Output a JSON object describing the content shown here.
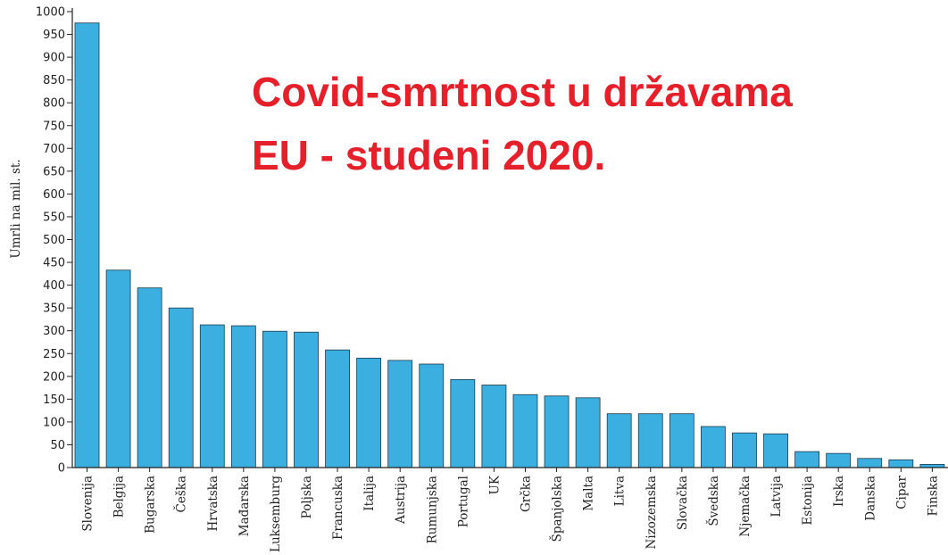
{
  "chart_data": {
    "type": "bar",
    "title_lines": [
      "Covid-smrtnost u državama",
      "EU - studeni 2020."
    ],
    "xlabel": "",
    "ylabel": "Umrli na mil. st.",
    "ylim": [
      0,
      1000
    ],
    "yticks": [
      0,
      50,
      100,
      150,
      200,
      250,
      300,
      350,
      400,
      450,
      500,
      550,
      600,
      650,
      700,
      750,
      800,
      850,
      900,
      950,
      1000
    ],
    "grid": false,
    "legend": "none",
    "categories": [
      "Slovenija",
      "Belgija",
      "Bugarska",
      "Češka",
      "Hrvatska",
      "Mađarska",
      "Luksemburg",
      "Poljska",
      "Francuska",
      "Italija",
      "Austrija",
      "Rumunjska",
      "Portugal",
      "UK",
      "Grčka",
      "Španjolska",
      "Malta",
      "Litva",
      "Nizozemska",
      "Slovačka",
      "Švedska",
      "Njemačka",
      "Latvija",
      "Estonija",
      "Irska",
      "Danska",
      "Cipar",
      "Finska"
    ],
    "values": [
      975,
      433,
      394,
      350,
      313,
      311,
      299,
      297,
      258,
      240,
      235,
      227,
      193,
      181,
      160,
      157,
      153,
      118,
      118,
      118,
      90,
      76,
      74,
      35,
      31,
      20,
      17,
      7
    ],
    "colors": {
      "bar_fill": "#3aafe0",
      "bar_stroke": "#1c3a4a",
      "title": "#e5202a",
      "axis": "#222222"
    }
  }
}
